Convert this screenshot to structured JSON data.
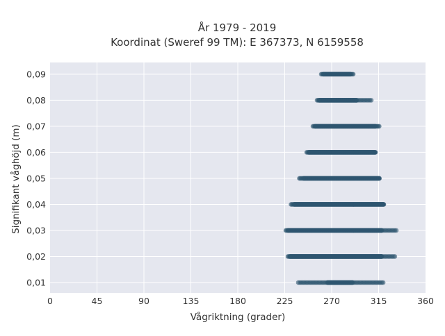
{
  "chart_data": {
    "type": "scatter",
    "title_line1": "År 1979 - 2019",
    "title_line2": "Koordinat (Sweref 99 TM): E 367373, N 6159558",
    "xlabel": "Vågriktning (grader)",
    "ylabel": "Signifikant våghöjd (m)",
    "xlim": [
      0,
      360
    ],
    "ylim": [
      0.006,
      0.0945
    ],
    "x_ticks": [
      0,
      45,
      90,
      135,
      180,
      225,
      270,
      315,
      360
    ],
    "x_tick_labels": [
      "0",
      "45",
      "90",
      "135",
      "180",
      "225",
      "270",
      "315",
      "360"
    ],
    "y_ticks": [
      0.01,
      0.02,
      0.03,
      0.04,
      0.05,
      0.06,
      0.07,
      0.08,
      0.09
    ],
    "y_tick_labels": [
      "0,01",
      "0,02",
      "0,03",
      "0,04",
      "0,05",
      "0,06",
      "0,07",
      "0,08",
      "0,09"
    ],
    "grid": true,
    "marker_color": "#2f5670",
    "background_color": "#e5e7ef",
    "series": [
      {
        "height": 0.09,
        "dense": [
          262,
          288
        ],
        "sparse": [
          [
            260,
            262
          ],
          [
            288,
            291
          ]
        ]
      },
      {
        "height": 0.08,
        "dense": [
          258,
          294
        ],
        "sparse": [
          [
            256,
            258
          ],
          [
            294,
            309
          ]
        ]
      },
      {
        "height": 0.07,
        "dense": [
          254,
          312
        ],
        "sparse": [
          [
            252,
            254
          ],
          [
            312,
            316
          ]
        ]
      },
      {
        "height": 0.06,
        "dense": [
          248,
          312
        ],
        "sparse": [
          [
            246,
            248
          ]
        ]
      },
      {
        "height": 0.05,
        "dense": [
          243,
          316
        ],
        "sparse": [
          [
            239,
            243
          ]
        ]
      },
      {
        "height": 0.04,
        "dense": [
          234,
          320
        ],
        "sparse": [
          [
            231,
            234
          ]
        ]
      },
      {
        "height": 0.03,
        "dense": [
          228,
          318
        ],
        "sparse": [
          [
            226,
            228
          ],
          [
            318,
            333
          ]
        ]
      },
      {
        "height": 0.02,
        "dense": [
          230,
          318
        ],
        "sparse": [
          [
            228,
            230
          ],
          [
            318,
            331
          ]
        ]
      },
      {
        "height": 0.01,
        "dense": [
          266,
          290
        ],
        "sparse": [
          [
            238,
            266
          ],
          [
            290,
            320
          ]
        ]
      }
    ]
  }
}
